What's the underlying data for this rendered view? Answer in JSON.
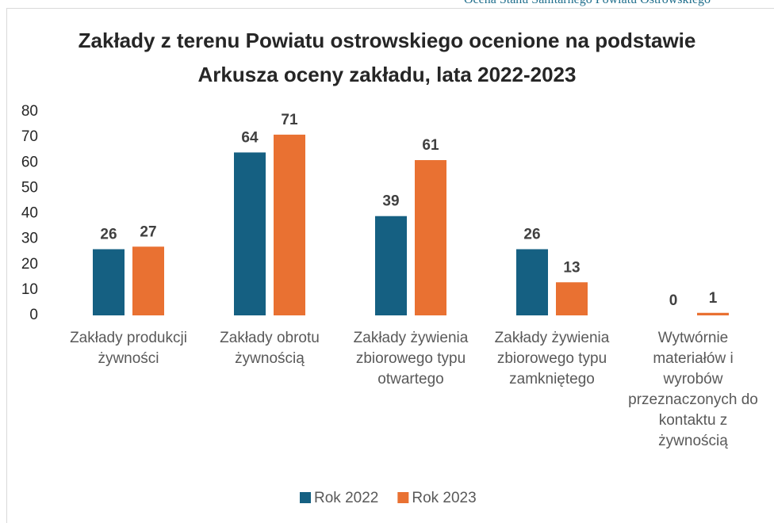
{
  "header": "Ocena Stanu Sanitarnego Powiatu Ostrowskiego",
  "chart_data": {
    "type": "bar",
    "title": "Zakłady z terenu Powiatu ostrowskiego ocenione na podstawie Arkusza oceny zakładu, lata 2022-2023",
    "categories": [
      "Zakłady produkcji żywności",
      "Zakłady obrotu żywnością",
      "Zakłady żywienia zbiorowego typu otwartego",
      "Zakłady żywienia zbiorowego typu zamkniętego",
      "Wytwórnie materiałów i wyrobów przeznaczonych do kontaktu z żywnością"
    ],
    "series": [
      {
        "name": "Rok 2022",
        "color": "#156082",
        "values": [
          26,
          64,
          39,
          26,
          0
        ]
      },
      {
        "name": "Rok 2023",
        "color": "#e97132",
        "values": [
          27,
          71,
          61,
          13,
          1
        ]
      }
    ],
    "ylim": [
      0,
      80
    ],
    "yticks": [
      0,
      10,
      20,
      30,
      40,
      50,
      60,
      70,
      80
    ],
    "grid": false,
    "legend": "bottom"
  }
}
